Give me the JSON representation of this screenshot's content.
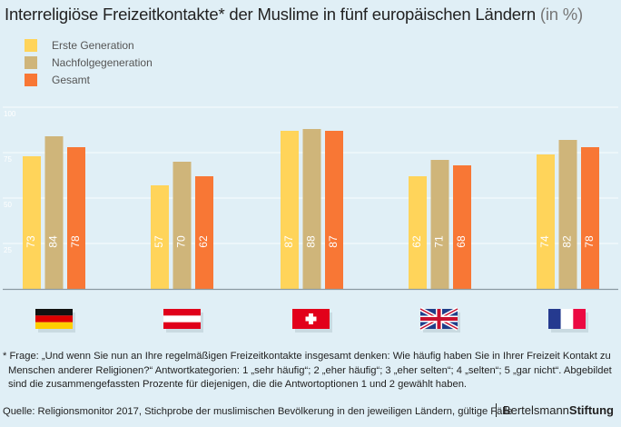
{
  "title": "Interreligiöse Freizeitkontakte* der Muslime in fünf europäischen Ländern",
  "title_unit": "(in %)",
  "chart_data": {
    "type": "bar",
    "categories": [
      "Deutschland",
      "Österreich",
      "Schweiz",
      "Großbritannien",
      "Frankreich"
    ],
    "series": [
      {
        "name": "Erste Generation",
        "color": "#ffd45a",
        "values": [
          73,
          57,
          87,
          62,
          74
        ]
      },
      {
        "name": "Nachfolgegeneration",
        "color": "#cfb57a",
        "values": [
          84,
          70,
          88,
          71,
          82
        ]
      },
      {
        "name": "Gesamt",
        "color": "#f87735",
        "values": [
          78,
          62,
          87,
          68,
          78
        ]
      }
    ],
    "yticks": [
      25,
      50,
      75,
      100
    ],
    "ylim": [
      0,
      100
    ],
    "grid": true,
    "legend": "top-left"
  },
  "footnote": "* Frage: „Und wenn Sie nun an Ihre regelmäßigen Freizeitkontakte insgesamt denken: Wie häufig haben Sie in Ihrer Freizeit Kontakt zu Menschen anderer Religionen?“ Antwortkategorien: 1 „sehr häufig“; 2 „eher häufig“; 3 „eher selten“; 4 „selten“; 5 „gar nicht“. Abgebildet sind die zusammengefassten Prozente für diejenigen, die die Antwortoptionen 1 und 2 gewählt haben.",
  "source": "Quelle: Religionsmonitor 2017, Stichprobe der muslimischen Bevölkerung in den jeweiligen Ländern, gültige Fälle",
  "brand": {
    "light": "Bertelsmann",
    "bold": "Stiftung"
  }
}
